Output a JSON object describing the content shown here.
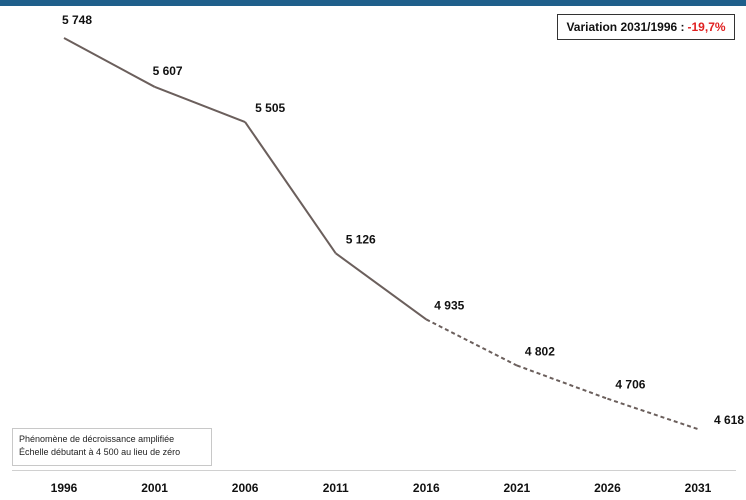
{
  "variation": {
    "label": "Variation 2031/1996 :",
    "value": "-19,7%"
  },
  "note": {
    "line1": "Phénomène de décroissance amplifiée",
    "line2": "Échelle débutant  à 4 500 au lieu de zéro"
  },
  "colors": {
    "line": "#6b5f5c",
    "negative": "#e02020",
    "top_bar": "#1f5f8b"
  },
  "chart_data": {
    "type": "line",
    "categories": [
      "1996",
      "2001",
      "2006",
      "2011",
      "2016",
      "2021",
      "2026",
      "2031"
    ],
    "values": [
      5748,
      5607,
      5505,
      5126,
      4935,
      4802,
      4706,
      4618
    ],
    "value_labels": [
      "5 748",
      "5 607",
      "5 505",
      "5 126",
      "4 935",
      "4 802",
      "4 706",
      "4 618"
    ],
    "solid_until_index": 4,
    "dashed_from_index": 4,
    "ylim": [
      4500,
      5800
    ],
    "grid": false,
    "title": "",
    "xlabel": "",
    "ylabel": ""
  }
}
